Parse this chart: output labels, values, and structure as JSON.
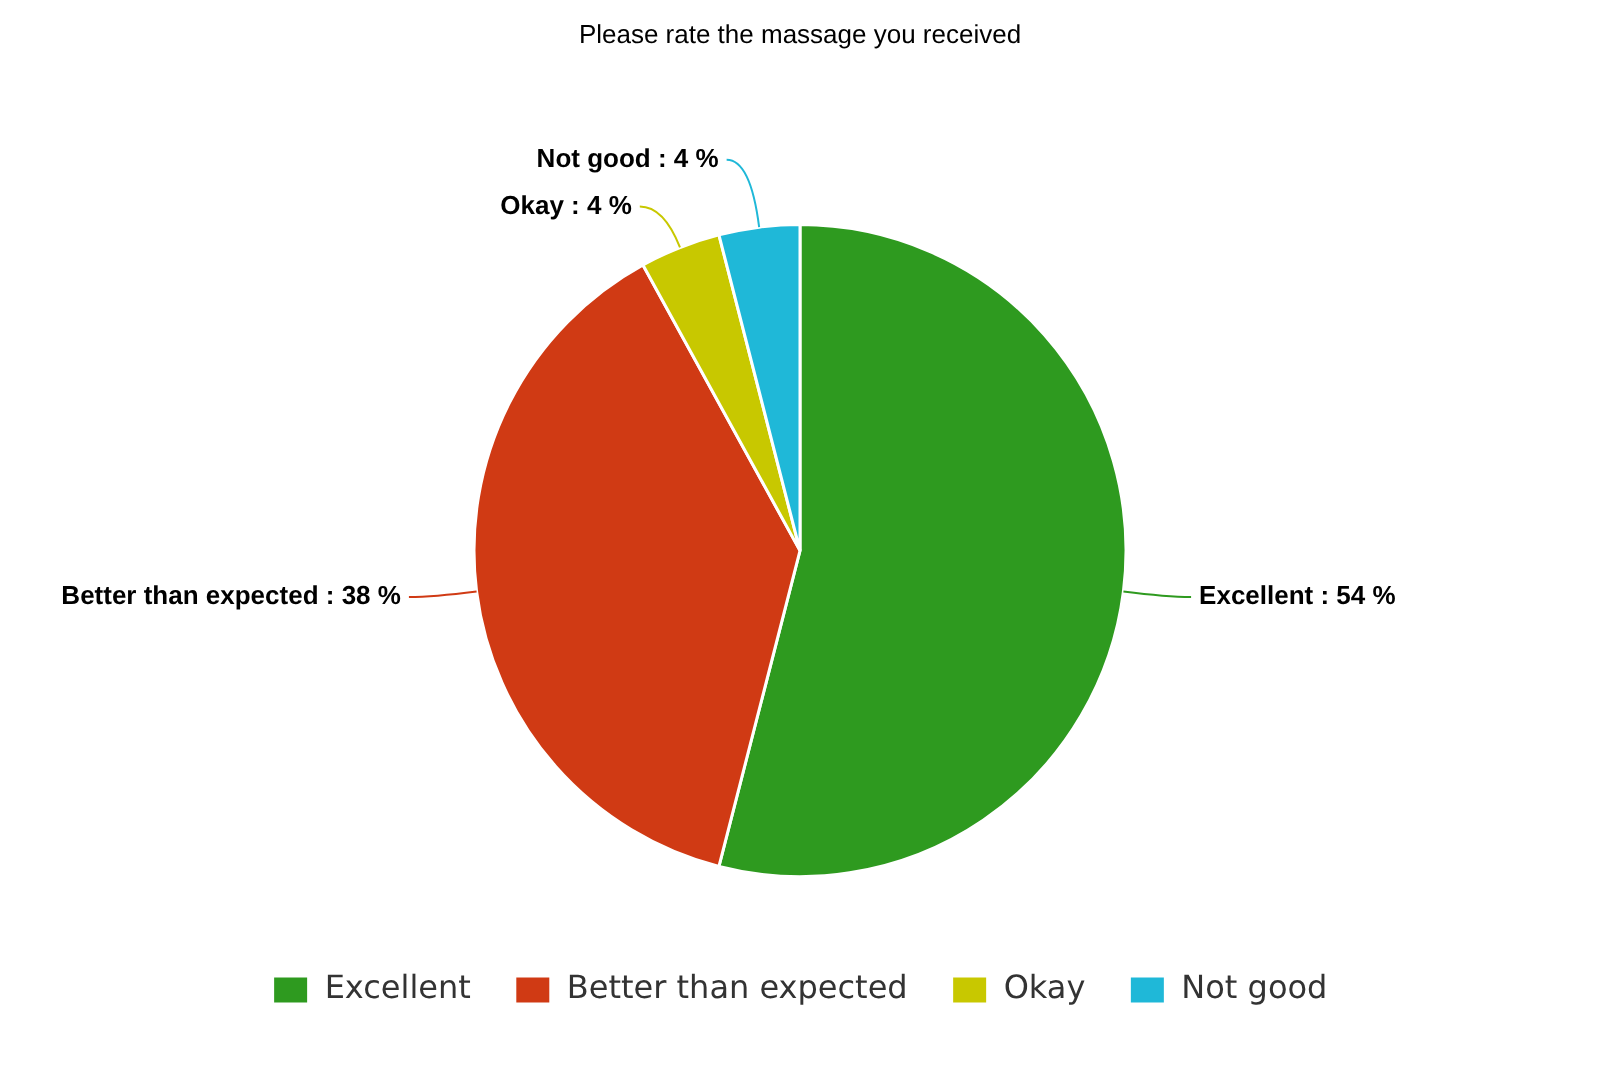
{
  "chart_data": {
    "type": "pie",
    "title": "Please rate the massage you received",
    "categories": [
      "Excellent",
      "Better than expected",
      "Okay",
      "Not good"
    ],
    "values": [
      54,
      38,
      4,
      4
    ],
    "colors": [
      "#2e9a1f",
      "#d03a14",
      "#c8c800",
      "#1fb8d8"
    ],
    "value_labels": [
      "Excellent : 54 %",
      "Better than expected : 38 %",
      "Okay : 4 %",
      "Not good : 4 %"
    ],
    "legend": "bottom"
  }
}
